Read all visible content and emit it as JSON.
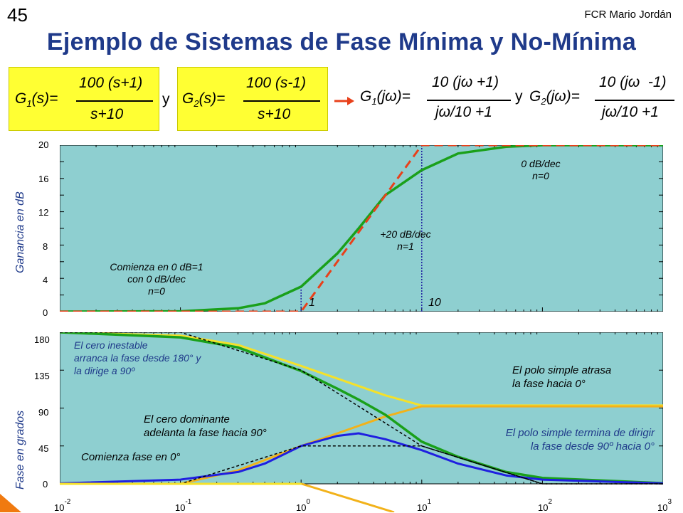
{
  "slide_number": "45",
  "author": "FCR Mario Jordán",
  "title": "Ejemplo de Sistemas de Fase Mínima y No-Mínima",
  "formulas": {
    "g1_lhs": "G",
    "g1_sub": "1",
    "g1_arg": "(s)=",
    "g1_num": "100 (s+1)",
    "g1_den": "s+10",
    "y1": "y",
    "g2_lhs": "G",
    "g2_sub": "2",
    "g2_arg": "(s)=",
    "g2_num": "100 (s-1)",
    "g2_den": "s+10",
    "g1j_lhs": "G",
    "g1j_sub": "1",
    "g1j_arg": "(jω)=",
    "g1j_num": "10 (jω +1)",
    "g1j_den": "jω/10 +1",
    "y2": "y",
    "g2j_lhs": "G",
    "g2j_sub": "2",
    "g2j_arg": "(jω)=",
    "g2j_num": "10 (jω  -1)",
    "g2j_den": "jω/10 +1"
  },
  "gain_plot": {
    "ylabel": "Ganancia en dB",
    "yticks": [
      "20",
      "16",
      "12",
      "8",
      "4",
      "0"
    ],
    "corner_labels": [
      "1",
      "10"
    ],
    "annotations": {
      "start": [
        "Comienza en 0 dB=1",
        "con 0 dB/dec",
        "n=0"
      ],
      "slope": [
        "+20 dB/dec",
        "n=1"
      ],
      "flat": [
        "0 dB/dec",
        "n=0"
      ]
    }
  },
  "phase_plot": {
    "ylabel": "Fase en grados",
    "yticks": [
      "180",
      "135",
      "90",
      "45",
      "0"
    ],
    "annotations": {
      "unstable_zero": [
        "El cero inestable",
        "arranca la fase desde 180° y",
        "la dirige a 90º"
      ],
      "dominant_zero": [
        "El cero dominante",
        "adelanta la fase hacia 90°"
      ],
      "start_phase": [
        "Comienza fase en 0°"
      ],
      "pole_lag": [
        "El polo simple atrasa",
        "la fase hacia 0°"
      ],
      "pole_end": [
        "El polo simple termina de dirigir",
        "la fase desde 90º hacia 0°"
      ]
    }
  },
  "x_axis": {
    "base": "10",
    "exponents": [
      "-2",
      "-1",
      "0",
      "1",
      "2",
      "3"
    ]
  },
  "chart_data": {
    "type": "line",
    "x_scale": "log",
    "xlim": [
      0.01,
      1000
    ],
    "gain": {
      "ylim": [
        0,
        20
      ],
      "series": [
        {
          "values_x": [
            0.01,
            0.1,
            0.3,
            0.5,
            1,
            2,
            3,
            5,
            10,
            20,
            50,
            100,
            1000
          ],
          "values_y": [
            0,
            0.04,
            0.4,
            1,
            3,
            7,
            10,
            14,
            17,
            19,
            19.8,
            20,
            20
          ]
        },
        {
          "values_x": [
            0.01,
            1,
            10,
            1000
          ],
          "values_y": [
            0,
            0,
            20,
            20
          ]
        }
      ]
    },
    "phase": {
      "ylim": [
        0,
        180
      ],
      "series": [
        {
          "values_x": [
            0.01,
            0.1,
            0.3,
            1,
            2,
            3,
            5,
            10,
            20,
            50,
            100,
            1000
          ],
          "values_y": [
            180,
            174,
            162,
            134,
            113,
            100,
            82,
            50,
            32,
            14,
            7,
            0.8
          ]
        },
        {
          "values_x": [
            0.01,
            0.1,
            0.3,
            0.5,
            1,
            2,
            3,
            5,
            10,
            20,
            50,
            100,
            1000
          ],
          "values_y": [
            0.5,
            5,
            14,
            24,
            45,
            57,
            60,
            53,
            40,
            24,
            10,
            5,
            0.5
          ]
        },
        {
          "values_x": [
            0.01,
            0.1,
            0.3,
            1,
            2,
            5,
            10,
            20,
            100,
            1000
          ],
          "values_y": [
            180,
            176,
            165,
            140,
            125,
            105,
            93,
            93,
            93,
            93
          ]
        },
        {
          "values_x": [
            0.01,
            0.1,
            0.3,
            1,
            2,
            5,
            10,
            20,
            100,
            1000
          ],
          "values_y": [
            0,
            0,
            16,
            45,
            60,
            80,
            92,
            92,
            92,
            92
          ]
        },
        {
          "values_x": [
            0.01,
            0.1,
            1,
            10,
            100,
            1000
          ],
          "values_y": [
            180,
            180,
            135,
            45,
            0,
            0
          ]
        },
        {
          "values_x": [
            0.01,
            0.1,
            1,
            10,
            100,
            1000
          ],
          "values_y": [
            0,
            0,
            45,
            45,
            0,
            0
          ]
        }
      ]
    }
  },
  "colors": {
    "plot_bg": "#8ecfd0",
    "green": "#1aa01a",
    "blue": "#1f1fe0",
    "yellow": "#f5e12a",
    "orange": "#f2b21a",
    "red_dashed": "#e8401a",
    "title": "#1f3a8a",
    "formula_box": "#ffff33",
    "arrow": "#e8401a",
    "corner": "#f07a10"
  }
}
